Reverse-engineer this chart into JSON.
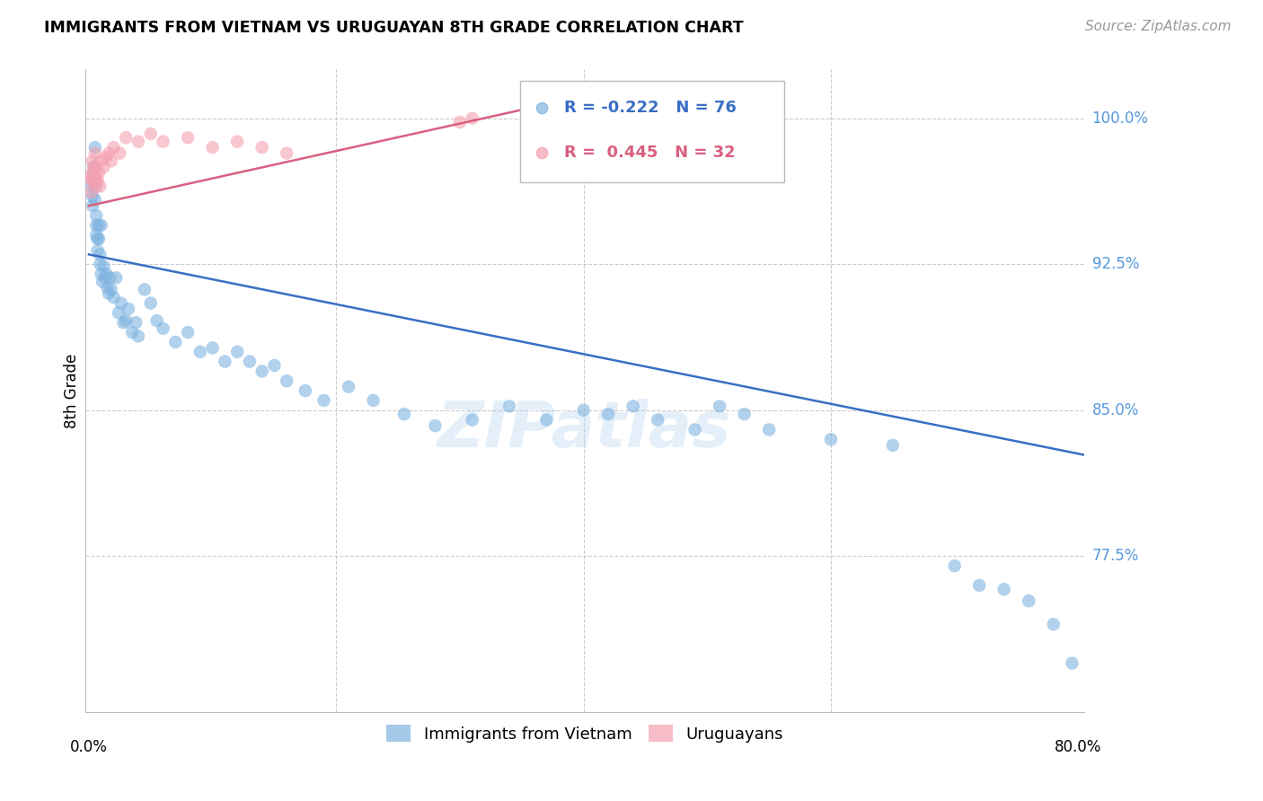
{
  "title": "IMMIGRANTS FROM VIETNAM VS URUGUAYAN 8TH GRADE CORRELATION CHART",
  "source": "Source: ZipAtlas.com",
  "ylabel": "8th Grade",
  "ytick_labels": [
    "100.0%",
    "92.5%",
    "85.0%",
    "77.5%"
  ],
  "ytick_values": [
    1.0,
    0.925,
    0.85,
    0.775
  ],
  "ymin": 0.695,
  "ymax": 1.025,
  "xmin": -0.003,
  "xmax": 0.805,
  "legend_blue_r": "-0.222",
  "legend_blue_n": "76",
  "legend_pink_r": "0.445",
  "legend_pink_n": "32",
  "blue_color": "#7EB3E0",
  "pink_color": "#F4A0B0",
  "blue_line_color": "#3A6FC4",
  "pink_line_color": "#D96080",
  "watermark_text": "ZIPatlas",
  "blue_line_x0": 0.0,
  "blue_line_x1": 0.805,
  "blue_line_y0": 0.93,
  "blue_line_y1": 0.827,
  "pink_line_x0": 0.0,
  "pink_line_x1": 0.355,
  "pink_line_y0": 0.955,
  "pink_line_y1": 1.005,
  "blue_pts_x": [
    0.002,
    0.003,
    0.003,
    0.004,
    0.004,
    0.005,
    0.005,
    0.005,
    0.006,
    0.006,
    0.006,
    0.007,
    0.007,
    0.008,
    0.008,
    0.009,
    0.009,
    0.01,
    0.01,
    0.011,
    0.012,
    0.013,
    0.014,
    0.015,
    0.016,
    0.017,
    0.018,
    0.02,
    0.022,
    0.024,
    0.026,
    0.028,
    0.03,
    0.032,
    0.035,
    0.038,
    0.04,
    0.045,
    0.05,
    0.055,
    0.06,
    0.07,
    0.08,
    0.09,
    0.1,
    0.11,
    0.12,
    0.13,
    0.14,
    0.15,
    0.16,
    0.175,
    0.19,
    0.21,
    0.23,
    0.255,
    0.28,
    0.31,
    0.34,
    0.37,
    0.4,
    0.42,
    0.44,
    0.46,
    0.49,
    0.51,
    0.53,
    0.55,
    0.6,
    0.65,
    0.7,
    0.72,
    0.74,
    0.76,
    0.78,
    0.795
  ],
  "blue_pts_y": [
    0.965,
    0.96,
    0.955,
    0.975,
    0.97,
    0.985,
    0.965,
    0.958,
    0.95,
    0.945,
    0.94,
    0.938,
    0.932,
    0.945,
    0.938,
    0.93,
    0.925,
    0.945,
    0.92,
    0.916,
    0.924,
    0.918,
    0.92,
    0.913,
    0.91,
    0.918,
    0.912,
    0.908,
    0.918,
    0.9,
    0.905,
    0.895,
    0.896,
    0.902,
    0.89,
    0.895,
    0.888,
    0.912,
    0.905,
    0.896,
    0.892,
    0.885,
    0.89,
    0.88,
    0.882,
    0.875,
    0.88,
    0.875,
    0.87,
    0.873,
    0.865,
    0.86,
    0.855,
    0.862,
    0.855,
    0.848,
    0.842,
    0.845,
    0.852,
    0.845,
    0.85,
    0.848,
    0.852,
    0.845,
    0.84,
    0.852,
    0.848,
    0.84,
    0.835,
    0.832,
    0.77,
    0.76,
    0.758,
    0.752,
    0.74,
    0.72
  ],
  "pink_pts_x": [
    0.001,
    0.002,
    0.002,
    0.003,
    0.003,
    0.004,
    0.004,
    0.005,
    0.005,
    0.006,
    0.006,
    0.007,
    0.008,
    0.009,
    0.01,
    0.012,
    0.014,
    0.016,
    0.018,
    0.02,
    0.025,
    0.03,
    0.04,
    0.05,
    0.06,
    0.08,
    0.1,
    0.12,
    0.14,
    0.16,
    0.3,
    0.31
  ],
  "pink_pts_y": [
    0.97,
    0.968,
    0.962,
    0.978,
    0.972,
    0.975,
    0.968,
    0.982,
    0.975,
    0.97,
    0.965,
    0.968,
    0.972,
    0.965,
    0.978,
    0.975,
    0.98,
    0.982,
    0.978,
    0.985,
    0.982,
    0.99,
    0.988,
    0.992,
    0.988,
    0.99,
    0.985,
    0.988,
    0.985,
    0.982,
    0.998,
    1.0
  ]
}
